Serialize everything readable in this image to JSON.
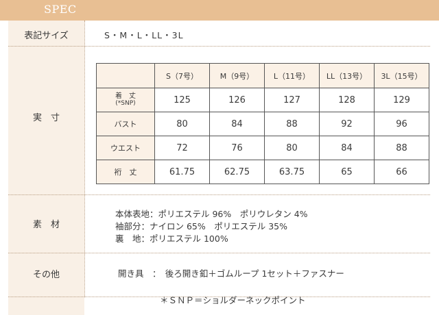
{
  "header": {
    "title": "SPEC"
  },
  "size_row": {
    "label": "表記サイズ",
    "value": "S・M・L・LL・3L"
  },
  "measure": {
    "label": "実　寸",
    "columns": [
      "S（7号）",
      "M（9号）",
      "L（11号）",
      "LL（13号）",
      "3L（15号）"
    ],
    "rows": [
      {
        "name": "着　丈",
        "note": "(*SNP)",
        "values": [
          "125",
          "126",
          "127",
          "128",
          "129"
        ]
      },
      {
        "name": "バスト",
        "values": [
          "80",
          "84",
          "88",
          "92",
          "96"
        ]
      },
      {
        "name": "ウエスト",
        "values": [
          "72",
          "76",
          "80",
          "84",
          "88"
        ]
      },
      {
        "name": "裄　丈",
        "values": [
          "61.75",
          "62.75",
          "63.75",
          "65",
          "66"
        ]
      }
    ]
  },
  "material": {
    "label": "素　材",
    "lines": [
      "本体表地：ポリエステル 96%　ポリウレタン 4%",
      "袖部分：ナイロン 65%　ポリエステル 35%",
      "裏　地：ポリエステル 100%"
    ]
  },
  "other": {
    "label": "その他",
    "line": "開き具　：　後ろ開き釦＋ゴムループ 1セット＋ファスナー"
  },
  "footnote": "＊ＳＮＰ＝ショルダーネックポイント"
}
